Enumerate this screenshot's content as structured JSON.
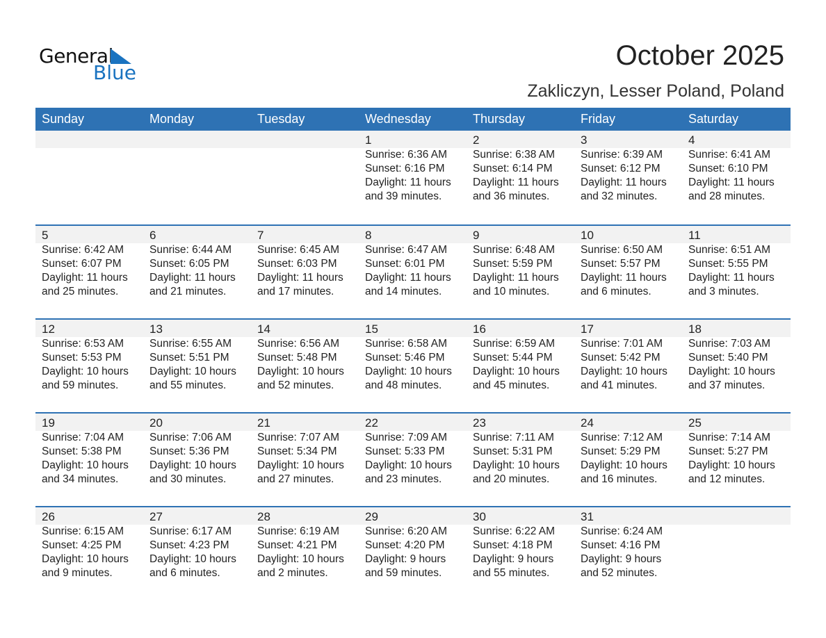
{
  "logo": {
    "text1": "General",
    "text2": "Blue"
  },
  "title": "October 2025",
  "location": "Zakliczyn, Lesser Poland, Poland",
  "colors": {
    "header": "#2e72b4",
    "day_strip": "#f2f2f2",
    "logo_blue": "#1a73c0"
  },
  "weekdays": [
    "Sunday",
    "Monday",
    "Tuesday",
    "Wednesday",
    "Thursday",
    "Friday",
    "Saturday"
  ],
  "weeks": [
    [
      null,
      null,
      null,
      {
        "day": "1",
        "sunrise": "Sunrise: 6:36 AM",
        "sunset": "Sunset: 6:16 PM",
        "daylight1": "Daylight: 11 hours",
        "daylight2": "and 39 minutes."
      },
      {
        "day": "2",
        "sunrise": "Sunrise: 6:38 AM",
        "sunset": "Sunset: 6:14 PM",
        "daylight1": "Daylight: 11 hours",
        "daylight2": "and 36 minutes."
      },
      {
        "day": "3",
        "sunrise": "Sunrise: 6:39 AM",
        "sunset": "Sunset: 6:12 PM",
        "daylight1": "Daylight: 11 hours",
        "daylight2": "and 32 minutes."
      },
      {
        "day": "4",
        "sunrise": "Sunrise: 6:41 AM",
        "sunset": "Sunset: 6:10 PM",
        "daylight1": "Daylight: 11 hours",
        "daylight2": "and 28 minutes."
      }
    ],
    [
      {
        "day": "5",
        "sunrise": "Sunrise: 6:42 AM",
        "sunset": "Sunset: 6:07 PM",
        "daylight1": "Daylight: 11 hours",
        "daylight2": "and 25 minutes."
      },
      {
        "day": "6",
        "sunrise": "Sunrise: 6:44 AM",
        "sunset": "Sunset: 6:05 PM",
        "daylight1": "Daylight: 11 hours",
        "daylight2": "and 21 minutes."
      },
      {
        "day": "7",
        "sunrise": "Sunrise: 6:45 AM",
        "sunset": "Sunset: 6:03 PM",
        "daylight1": "Daylight: 11 hours",
        "daylight2": "and 17 minutes."
      },
      {
        "day": "8",
        "sunrise": "Sunrise: 6:47 AM",
        "sunset": "Sunset: 6:01 PM",
        "daylight1": "Daylight: 11 hours",
        "daylight2": "and 14 minutes."
      },
      {
        "day": "9",
        "sunrise": "Sunrise: 6:48 AM",
        "sunset": "Sunset: 5:59 PM",
        "daylight1": "Daylight: 11 hours",
        "daylight2": "and 10 minutes."
      },
      {
        "day": "10",
        "sunrise": "Sunrise: 6:50 AM",
        "sunset": "Sunset: 5:57 PM",
        "daylight1": "Daylight: 11 hours",
        "daylight2": "and 6 minutes."
      },
      {
        "day": "11",
        "sunrise": "Sunrise: 6:51 AM",
        "sunset": "Sunset: 5:55 PM",
        "daylight1": "Daylight: 11 hours",
        "daylight2": "and 3 minutes."
      }
    ],
    [
      {
        "day": "12",
        "sunrise": "Sunrise: 6:53 AM",
        "sunset": "Sunset: 5:53 PM",
        "daylight1": "Daylight: 10 hours",
        "daylight2": "and 59 minutes."
      },
      {
        "day": "13",
        "sunrise": "Sunrise: 6:55 AM",
        "sunset": "Sunset: 5:51 PM",
        "daylight1": "Daylight: 10 hours",
        "daylight2": "and 55 minutes."
      },
      {
        "day": "14",
        "sunrise": "Sunrise: 6:56 AM",
        "sunset": "Sunset: 5:48 PM",
        "daylight1": "Daylight: 10 hours",
        "daylight2": "and 52 minutes."
      },
      {
        "day": "15",
        "sunrise": "Sunrise: 6:58 AM",
        "sunset": "Sunset: 5:46 PM",
        "daylight1": "Daylight: 10 hours",
        "daylight2": "and 48 minutes."
      },
      {
        "day": "16",
        "sunrise": "Sunrise: 6:59 AM",
        "sunset": "Sunset: 5:44 PM",
        "daylight1": "Daylight: 10 hours",
        "daylight2": "and 45 minutes."
      },
      {
        "day": "17",
        "sunrise": "Sunrise: 7:01 AM",
        "sunset": "Sunset: 5:42 PM",
        "daylight1": "Daylight: 10 hours",
        "daylight2": "and 41 minutes."
      },
      {
        "day": "18",
        "sunrise": "Sunrise: 7:03 AM",
        "sunset": "Sunset: 5:40 PM",
        "daylight1": "Daylight: 10 hours",
        "daylight2": "and 37 minutes."
      }
    ],
    [
      {
        "day": "19",
        "sunrise": "Sunrise: 7:04 AM",
        "sunset": "Sunset: 5:38 PM",
        "daylight1": "Daylight: 10 hours",
        "daylight2": "and 34 minutes."
      },
      {
        "day": "20",
        "sunrise": "Sunrise: 7:06 AM",
        "sunset": "Sunset: 5:36 PM",
        "daylight1": "Daylight: 10 hours",
        "daylight2": "and 30 minutes."
      },
      {
        "day": "21",
        "sunrise": "Sunrise: 7:07 AM",
        "sunset": "Sunset: 5:34 PM",
        "daylight1": "Daylight: 10 hours",
        "daylight2": "and 27 minutes."
      },
      {
        "day": "22",
        "sunrise": "Sunrise: 7:09 AM",
        "sunset": "Sunset: 5:33 PM",
        "daylight1": "Daylight: 10 hours",
        "daylight2": "and 23 minutes."
      },
      {
        "day": "23",
        "sunrise": "Sunrise: 7:11 AM",
        "sunset": "Sunset: 5:31 PM",
        "daylight1": "Daylight: 10 hours",
        "daylight2": "and 20 minutes."
      },
      {
        "day": "24",
        "sunrise": "Sunrise: 7:12 AM",
        "sunset": "Sunset: 5:29 PM",
        "daylight1": "Daylight: 10 hours",
        "daylight2": "and 16 minutes."
      },
      {
        "day": "25",
        "sunrise": "Sunrise: 7:14 AM",
        "sunset": "Sunset: 5:27 PM",
        "daylight1": "Daylight: 10 hours",
        "daylight2": "and 12 minutes."
      }
    ],
    [
      {
        "day": "26",
        "sunrise": "Sunrise: 6:15 AM",
        "sunset": "Sunset: 4:25 PM",
        "daylight1": "Daylight: 10 hours",
        "daylight2": "and 9 minutes."
      },
      {
        "day": "27",
        "sunrise": "Sunrise: 6:17 AM",
        "sunset": "Sunset: 4:23 PM",
        "daylight1": "Daylight: 10 hours",
        "daylight2": "and 6 minutes."
      },
      {
        "day": "28",
        "sunrise": "Sunrise: 6:19 AM",
        "sunset": "Sunset: 4:21 PM",
        "daylight1": "Daylight: 10 hours",
        "daylight2": "and 2 minutes."
      },
      {
        "day": "29",
        "sunrise": "Sunrise: 6:20 AM",
        "sunset": "Sunset: 4:20 PM",
        "daylight1": "Daylight: 9 hours",
        "daylight2": "and 59 minutes."
      },
      {
        "day": "30",
        "sunrise": "Sunrise: 6:22 AM",
        "sunset": "Sunset: 4:18 PM",
        "daylight1": "Daylight: 9 hours",
        "daylight2": "and 55 minutes."
      },
      {
        "day": "31",
        "sunrise": "Sunrise: 6:24 AM",
        "sunset": "Sunset: 4:16 PM",
        "daylight1": "Daylight: 9 hours",
        "daylight2": "and 52 minutes."
      },
      null
    ]
  ]
}
